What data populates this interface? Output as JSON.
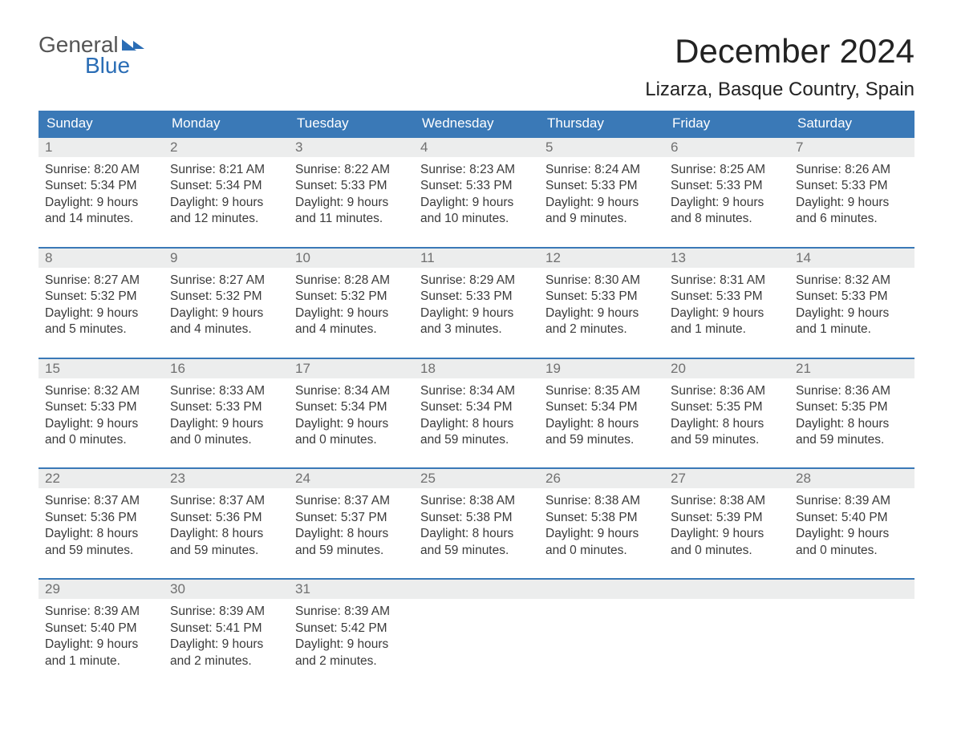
{
  "logo": {
    "line1": "General",
    "line2": "Blue"
  },
  "title": "December 2024",
  "location": "Lizarza, Basque Country, Spain",
  "colors": {
    "header_bg": "#3a79b7",
    "header_text": "#ffffff",
    "daynum_bg": "#eceded",
    "daynum_text": "#707070",
    "border": "#3a79b7",
    "body_text": "#3a3a3a",
    "logo_blue": "#2a6db5"
  },
  "day_names": [
    "Sunday",
    "Monday",
    "Tuesday",
    "Wednesday",
    "Thursday",
    "Friday",
    "Saturday"
  ],
  "labels": {
    "sunrise": "Sunrise: ",
    "sunset": "Sunset: ",
    "daylight": "Daylight: "
  },
  "weeks": [
    [
      {
        "n": "1",
        "sr": "8:20 AM",
        "ss": "5:34 PM",
        "dl": "9 hours and 14 minutes."
      },
      {
        "n": "2",
        "sr": "8:21 AM",
        "ss": "5:34 PM",
        "dl": "9 hours and 12 minutes."
      },
      {
        "n": "3",
        "sr": "8:22 AM",
        "ss": "5:33 PM",
        "dl": "9 hours and 11 minutes."
      },
      {
        "n": "4",
        "sr": "8:23 AM",
        "ss": "5:33 PM",
        "dl": "9 hours and 10 minutes."
      },
      {
        "n": "5",
        "sr": "8:24 AM",
        "ss": "5:33 PM",
        "dl": "9 hours and 9 minutes."
      },
      {
        "n": "6",
        "sr": "8:25 AM",
        "ss": "5:33 PM",
        "dl": "9 hours and 8 minutes."
      },
      {
        "n": "7",
        "sr": "8:26 AM",
        "ss": "5:33 PM",
        "dl": "9 hours and 6 minutes."
      }
    ],
    [
      {
        "n": "8",
        "sr": "8:27 AM",
        "ss": "5:32 PM",
        "dl": "9 hours and 5 minutes."
      },
      {
        "n": "9",
        "sr": "8:27 AM",
        "ss": "5:32 PM",
        "dl": "9 hours and 4 minutes."
      },
      {
        "n": "10",
        "sr": "8:28 AM",
        "ss": "5:32 PM",
        "dl": "9 hours and 4 minutes."
      },
      {
        "n": "11",
        "sr": "8:29 AM",
        "ss": "5:33 PM",
        "dl": "9 hours and 3 minutes."
      },
      {
        "n": "12",
        "sr": "8:30 AM",
        "ss": "5:33 PM",
        "dl": "9 hours and 2 minutes."
      },
      {
        "n": "13",
        "sr": "8:31 AM",
        "ss": "5:33 PM",
        "dl": "9 hours and 1 minute."
      },
      {
        "n": "14",
        "sr": "8:32 AM",
        "ss": "5:33 PM",
        "dl": "9 hours and 1 minute."
      }
    ],
    [
      {
        "n": "15",
        "sr": "8:32 AM",
        "ss": "5:33 PM",
        "dl": "9 hours and 0 minutes."
      },
      {
        "n": "16",
        "sr": "8:33 AM",
        "ss": "5:33 PM",
        "dl": "9 hours and 0 minutes."
      },
      {
        "n": "17",
        "sr": "8:34 AM",
        "ss": "5:34 PM",
        "dl": "9 hours and 0 minutes."
      },
      {
        "n": "18",
        "sr": "8:34 AM",
        "ss": "5:34 PM",
        "dl": "8 hours and 59 minutes."
      },
      {
        "n": "19",
        "sr": "8:35 AM",
        "ss": "5:34 PM",
        "dl": "8 hours and 59 minutes."
      },
      {
        "n": "20",
        "sr": "8:36 AM",
        "ss": "5:35 PM",
        "dl": "8 hours and 59 minutes."
      },
      {
        "n": "21",
        "sr": "8:36 AM",
        "ss": "5:35 PM",
        "dl": "8 hours and 59 minutes."
      }
    ],
    [
      {
        "n": "22",
        "sr": "8:37 AM",
        "ss": "5:36 PM",
        "dl": "8 hours and 59 minutes."
      },
      {
        "n": "23",
        "sr": "8:37 AM",
        "ss": "5:36 PM",
        "dl": "8 hours and 59 minutes."
      },
      {
        "n": "24",
        "sr": "8:37 AM",
        "ss": "5:37 PM",
        "dl": "8 hours and 59 minutes."
      },
      {
        "n": "25",
        "sr": "8:38 AM",
        "ss": "5:38 PM",
        "dl": "8 hours and 59 minutes."
      },
      {
        "n": "26",
        "sr": "8:38 AM",
        "ss": "5:38 PM",
        "dl": "9 hours and 0 minutes."
      },
      {
        "n": "27",
        "sr": "8:38 AM",
        "ss": "5:39 PM",
        "dl": "9 hours and 0 minutes."
      },
      {
        "n": "28",
        "sr": "8:39 AM",
        "ss": "5:40 PM",
        "dl": "9 hours and 0 minutes."
      }
    ],
    [
      {
        "n": "29",
        "sr": "8:39 AM",
        "ss": "5:40 PM",
        "dl": "9 hours and 1 minute."
      },
      {
        "n": "30",
        "sr": "8:39 AM",
        "ss": "5:41 PM",
        "dl": "9 hours and 2 minutes."
      },
      {
        "n": "31",
        "sr": "8:39 AM",
        "ss": "5:42 PM",
        "dl": "9 hours and 2 minutes."
      },
      null,
      null,
      null,
      null
    ]
  ]
}
